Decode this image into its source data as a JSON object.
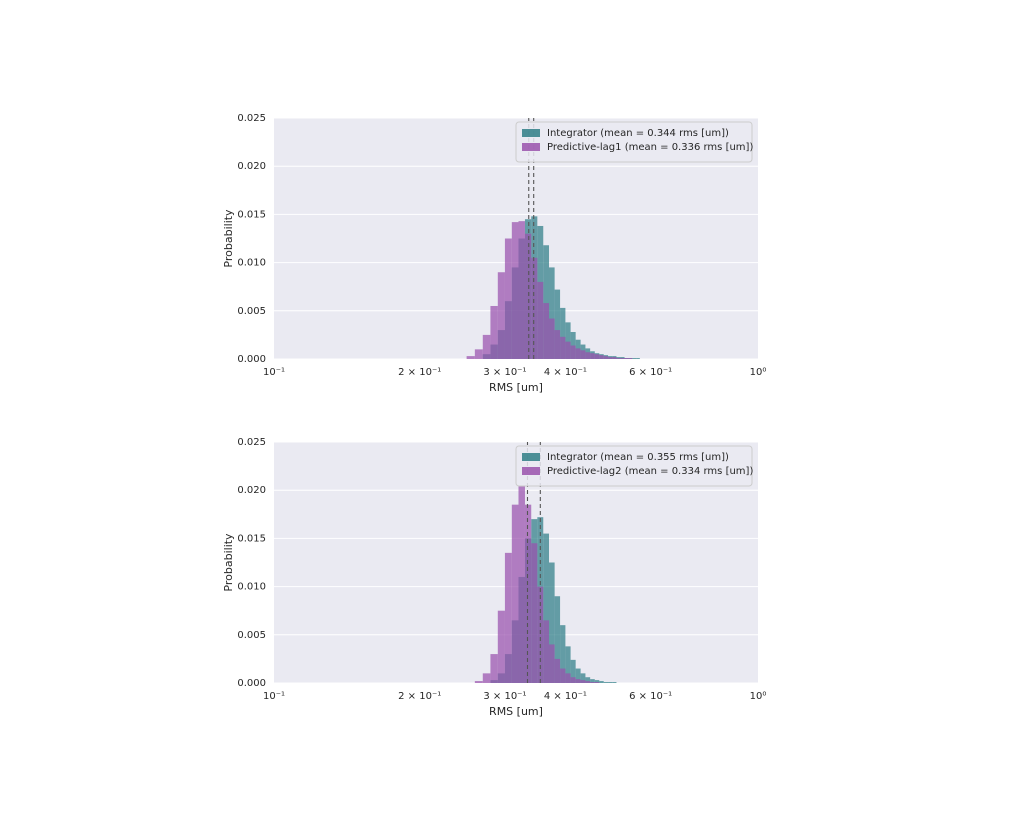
{
  "chart_data": [
    {
      "type": "histogram",
      "x_label": "RMS [um]",
      "y_label": "Probability",
      "x_scale": "log",
      "grid": "y",
      "legend": "upper right",
      "xlim": [
        0.1,
        1
      ],
      "ylim": [
        0,
        0.025
      ],
      "xticks": [
        {
          "value": 0.1,
          "label": "10⁻¹"
        },
        {
          "value": 0.2,
          "label": "2 × 10⁻¹"
        },
        {
          "value": 0.3,
          "label": "3 × 10⁻¹"
        },
        {
          "value": 0.4,
          "label": "4 × 10⁻¹"
        },
        {
          "value": 0.6,
          "label": "6 × 10⁻¹"
        },
        {
          "value": 1,
          "label": "10⁰"
        }
      ],
      "yticks": [
        {
          "value": 0,
          "label": "0.000"
        },
        {
          "value": 0.005,
          "label": "0.005"
        },
        {
          "value": 0.01,
          "label": "0.010"
        },
        {
          "value": 0.015,
          "label": "0.015"
        },
        {
          "value": 0.02,
          "label": "0.020"
        },
        {
          "value": 0.025,
          "label": "0.025"
        }
      ],
      "bins": [
        0.25,
        0.26,
        0.27,
        0.28,
        0.29,
        0.3,
        0.31,
        0.32,
        0.33,
        0.34,
        0.35,
        0.36,
        0.37,
        0.38,
        0.39,
        0.4,
        0.41,
        0.42,
        0.43,
        0.44,
        0.45,
        0.46,
        0.47,
        0.48,
        0.49,
        0.5,
        0.51,
        0.52,
        0.53,
        0.54,
        0.55,
        0.56,
        0.57,
        0.58,
        0.59,
        0.6
      ],
      "series": [
        {
          "name": "Integrator (mean = 0.344 rms [um])",
          "color": "#2f7e86",
          "mean": 0.344,
          "values": [
            0,
            0,
            0.0005,
            0.0015,
            0.003,
            0.006,
            0.0095,
            0.0125,
            0.0145,
            0.0148,
            0.0138,
            0.0118,
            0.0095,
            0.0072,
            0.0053,
            0.0038,
            0.0028,
            0.002,
            0.0015,
            0.0011,
            0.0008,
            0.0006,
            0.0005,
            0.0004,
            0.0003,
            0.0003,
            0.0002,
            0.0002,
            0.0001,
            0.0001,
            0.0001,
            0.0001,
            0,
            0,
            0
          ]
        },
        {
          "name": "Predictive-lag1 (mean = 0.336 rms [um])",
          "color": "#9a52ad",
          "mean": 0.336,
          "values": [
            0.0003,
            0.001,
            0.0025,
            0.0055,
            0.009,
            0.0125,
            0.0142,
            0.0143,
            0.013,
            0.0105,
            0.008,
            0.0058,
            0.0042,
            0.003,
            0.0023,
            0.0018,
            0.0014,
            0.0011,
            0.0009,
            0.0007,
            0.0006,
            0.0005,
            0.0004,
            0.0003,
            0.0002,
            0.0002,
            0.0001,
            0.0001,
            0.0001,
            0.0001,
            0,
            0,
            0,
            0,
            0
          ]
        }
      ]
    },
    {
      "type": "histogram",
      "x_label": "RMS [um]",
      "y_label": "Probability",
      "x_scale": "log",
      "grid": "y",
      "legend": "upper right",
      "xlim": [
        0.1,
        1
      ],
      "ylim": [
        0,
        0.025
      ],
      "xticks": [
        {
          "value": 0.1,
          "label": "10⁻¹"
        },
        {
          "value": 0.2,
          "label": "2 × 10⁻¹"
        },
        {
          "value": 0.3,
          "label": "3 × 10⁻¹"
        },
        {
          "value": 0.4,
          "label": "4 × 10⁻¹"
        },
        {
          "value": 0.6,
          "label": "6 × 10⁻¹"
        },
        {
          "value": 1,
          "label": "10⁰"
        }
      ],
      "yticks": [
        {
          "value": 0,
          "label": "0.000"
        },
        {
          "value": 0.005,
          "label": "0.005"
        },
        {
          "value": 0.01,
          "label": "0.010"
        },
        {
          "value": 0.015,
          "label": "0.015"
        },
        {
          "value": 0.02,
          "label": "0.020"
        },
        {
          "value": 0.025,
          "label": "0.025"
        }
      ],
      "bins": [
        0.25,
        0.26,
        0.27,
        0.28,
        0.29,
        0.3,
        0.31,
        0.32,
        0.33,
        0.34,
        0.35,
        0.36,
        0.37,
        0.38,
        0.39,
        0.4,
        0.41,
        0.42,
        0.43,
        0.44,
        0.45,
        0.46,
        0.47,
        0.48,
        0.49,
        0.5,
        0.51,
        0.52,
        0.53,
        0.54,
        0.55,
        0.56,
        0.57,
        0.58,
        0.59,
        0.6
      ],
      "series": [
        {
          "name": "Integrator (mean = 0.355 rms [um])",
          "color": "#2f7e86",
          "mean": 0.355,
          "values": [
            0,
            0,
            0,
            0.0003,
            0.001,
            0.003,
            0.0065,
            0.011,
            0.015,
            0.017,
            0.0172,
            0.0155,
            0.0125,
            0.009,
            0.006,
            0.0038,
            0.0024,
            0.0015,
            0.001,
            0.0006,
            0.0004,
            0.0003,
            0.0002,
            0.0001,
            0.0001,
            0.0001,
            0,
            0,
            0,
            0,
            0,
            0,
            0,
            0,
            0
          ]
        },
        {
          "name": "Predictive-lag2 (mean = 0.334 rms [um])",
          "color": "#9a52ad",
          "mean": 0.334,
          "values": [
            0,
            0.0002,
            0.001,
            0.003,
            0.0075,
            0.0135,
            0.0185,
            0.0205,
            0.0185,
            0.0145,
            0.01,
            0.0065,
            0.004,
            0.0025,
            0.0015,
            0.001,
            0.0006,
            0.0004,
            0.0003,
            0.0002,
            0.0001,
            0.0001,
            0,
            0,
            0,
            0,
            0,
            0,
            0,
            0,
            0,
            0,
            0,
            0,
            0
          ]
        }
      ]
    }
  ]
}
